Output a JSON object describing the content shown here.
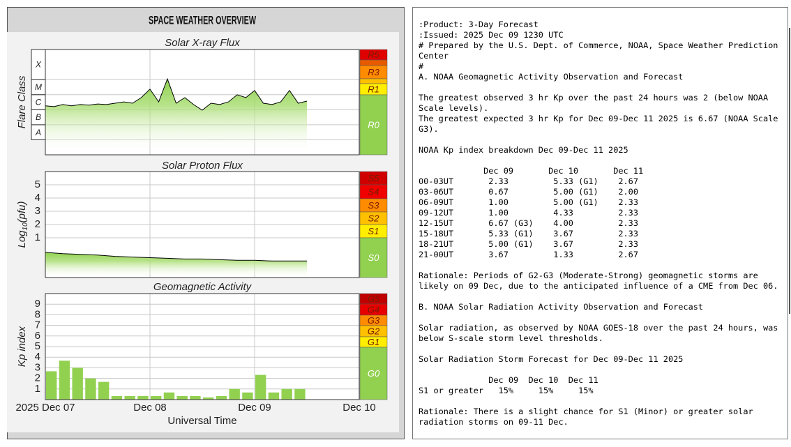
{
  "header": {
    "title": "SPACE WEATHER OVERVIEW"
  },
  "chart_data": [
    {
      "type": "line",
      "title": "Solar X-ray Flux",
      "ylabel": [
        "Flare Class"
      ],
      "log_scale": true,
      "x": [
        0,
        2,
        4,
        6,
        8,
        10,
        12,
        14,
        16,
        18,
        20,
        22,
        24,
        26,
        28,
        30,
        32,
        34,
        36,
        38,
        40,
        42,
        44,
        46,
        48,
        50,
        52,
        54,
        56,
        58,
        60
      ],
      "values": [
        1.8e-06,
        1.6e-06,
        2.2e-06,
        1.8e-06,
        2.2e-06,
        2e-06,
        2.4e-06,
        2.2e-06,
        2.7e-06,
        3.3e-06,
        2.7e-06,
        6.3e-06,
        2.3e-05,
        3.3e-06,
        0.00011,
        2.7e-06,
        6.3e-06,
        2.2e-06,
        9.3e-07,
        2.7e-06,
        2.2e-06,
        3.3e-06,
        9.8e-06,
        6.3e-06,
        1.9e-05,
        2.7e-06,
        2.2e-06,
        3.3e-06,
        1.9e-05,
        2.7e-06,
        3.7e-06
      ],
      "color": "#000000",
      "fill": "#8fd14f",
      "xlim": [
        0,
        72
      ],
      "xticks": [
        24,
        48
      ],
      "ylim": [
        1e-09,
        0.01
      ],
      "yticks": [
        {
          "value": 1e-08,
          "label": "A"
        },
        {
          "value": 1e-07,
          "label": "B"
        },
        {
          "value": 1e-06,
          "label": "C"
        },
        {
          "value": 1e-05,
          "label": "M"
        },
        {
          "value": 0.0001,
          "label": "X"
        }
      ],
      "grid": true,
      "scale": [
        {
          "label": "R5",
          "color": "#e00000"
        },
        {
          "color": "#e85a00"
        },
        {
          "label": "R3",
          "color": "#ff8c00"
        },
        {
          "color": "#ffc000"
        },
        {
          "label": "R1",
          "color": "#ffee00"
        },
        {
          "label": "R0",
          "color": "#92d050"
        }
      ]
    },
    {
      "type": "line",
      "title": "Solar Proton Flux",
      "ylabel": [
        "Log",
        "10",
        "(pfu)"
      ],
      "x": [
        0,
        4,
        8,
        12,
        16,
        20,
        24,
        28,
        32,
        36,
        40,
        44,
        48,
        52,
        56,
        60
      ],
      "values": [
        -0.1,
        -0.2,
        -0.25,
        -0.3,
        -0.4,
        -0.45,
        -0.5,
        -0.55,
        -0.6,
        -0.6,
        -0.65,
        -0.7,
        -0.7,
        -0.75,
        -0.75,
        -0.75
      ],
      "color": "#000000",
      "fill": "#8fd14f",
      "xlim": [
        0,
        72
      ],
      "xticks": [
        24,
        48
      ],
      "ylim": [
        -2,
        6
      ],
      "yticks": [
        1,
        2,
        3,
        4,
        5
      ],
      "grid": true,
      "scale": [
        {
          "label": "S5",
          "color": "#d00000"
        },
        {
          "label": "S4",
          "color": "#f00000"
        },
        {
          "label": "S3",
          "color": "#ff8c00"
        },
        {
          "label": "S2",
          "color": "#ffc000"
        },
        {
          "label": "S1",
          "color": "#ffee00"
        },
        {
          "label": "S0",
          "color": "#92d050"
        }
      ]
    },
    {
      "type": "bar",
      "title": "Geomagnetic Activity",
      "ylabel": [
        "Kp index"
      ],
      "xlabel": "Universal Time",
      "x": [
        0,
        3,
        6,
        9,
        12,
        15,
        18,
        21,
        24,
        27,
        30,
        33,
        36,
        39,
        42,
        45,
        48,
        51,
        54,
        57
      ],
      "values": [
        2.67,
        3.67,
        3.0,
        2.0,
        1.67,
        0.33,
        0.33,
        0.33,
        0.33,
        0.67,
        0.33,
        0.33,
        0.2,
        0.33,
        1.0,
        0.67,
        2.33,
        0.67,
        1.0,
        1.0
      ],
      "color": "#92d050",
      "xlim": [
        0,
        72
      ],
      "xticks": [
        {
          "value": 0,
          "label": "2025 Dec 07"
        },
        {
          "value": 24,
          "label": "Dec 08"
        },
        {
          "value": 48,
          "label": "Dec 09"
        },
        {
          "value": 72,
          "label": "Dec 10"
        }
      ],
      "ylim": [
        0,
        10
      ],
      "yticks": [
        1,
        2,
        3,
        4,
        5,
        6,
        7,
        8,
        9
      ],
      "grid": true,
      "scale": [
        {
          "label": "G5",
          "color": "#c00000"
        },
        {
          "label": "G4",
          "color": "#e80000"
        },
        {
          "label": "G3",
          "color": "#ff8c00"
        },
        {
          "label": "G2",
          "color": "#ffc000"
        },
        {
          "label": "G1",
          "color": "#ffee00"
        },
        {
          "label": "G0",
          "color": "#92d050"
        }
      ]
    }
  ],
  "document": {
    "paragraphs": [
      [
        ":Product: 3-Day Forecast",
        ":Issued: 2025 Dec 09 1230 UTC",
        "# Prepared by the U.S. Dept. of Commerce, NOAA, Space Weather Prediction",
        "Center",
        "#",
        "A. NOAA Geomagnetic Activity Observation and Forecast"
      ],
      [
        "The greatest observed 3 hr Kp over the past 24 hours was 2 (below NOAA",
        "Scale levels).",
        "The greatest expected 3 hr Kp for Dec 09-Dec 11 2025 is 6.67 (NOAA Scale",
        "G3)."
      ],
      [
        "NOAA Kp index breakdown Dec 09-Dec 11 2025"
      ],
      [
        "             Dec 09       Dec 10       Dec 11",
        "00-03UT       2.33         5.33 (G1)    2.67",
        "03-06UT       0.67         5.00 (G1)    2.00",
        "06-09UT       1.00         5.00 (G1)    2.33",
        "09-12UT       1.00         4.33         2.33",
        "12-15UT       6.67 (G3)    4.00         2.33",
        "15-18UT       5.33 (G1)    3.67         2.33",
        "18-21UT       5.00 (G1)    3.67         2.33",
        "21-00UT       3.67         1.33         2.67"
      ],
      [
        "Rationale: Periods of G2-G3 (Moderate-Strong) geomagnetic storms are",
        "likely on 09 Dec, due to the anticipated influence of a CME from Dec 06."
      ],
      [
        "B. NOAA Solar Radiation Activity Observation and Forecast"
      ],
      [
        "Solar radiation, as observed by NOAA GOES-18 over the past 24 hours, was",
        "below S-scale storm level thresholds."
      ],
      [
        "Solar Radiation Storm Forecast for Dec 09-Dec 11 2025"
      ],
      [
        "              Dec 09  Dec 10  Dec 11",
        "S1 or greater   15%     15%     15%"
      ],
      [
        "Rationale: There is a slight chance for S1 (Minor) or greater solar",
        "radiation storms on 09-11 Dec."
      ]
    ]
  }
}
